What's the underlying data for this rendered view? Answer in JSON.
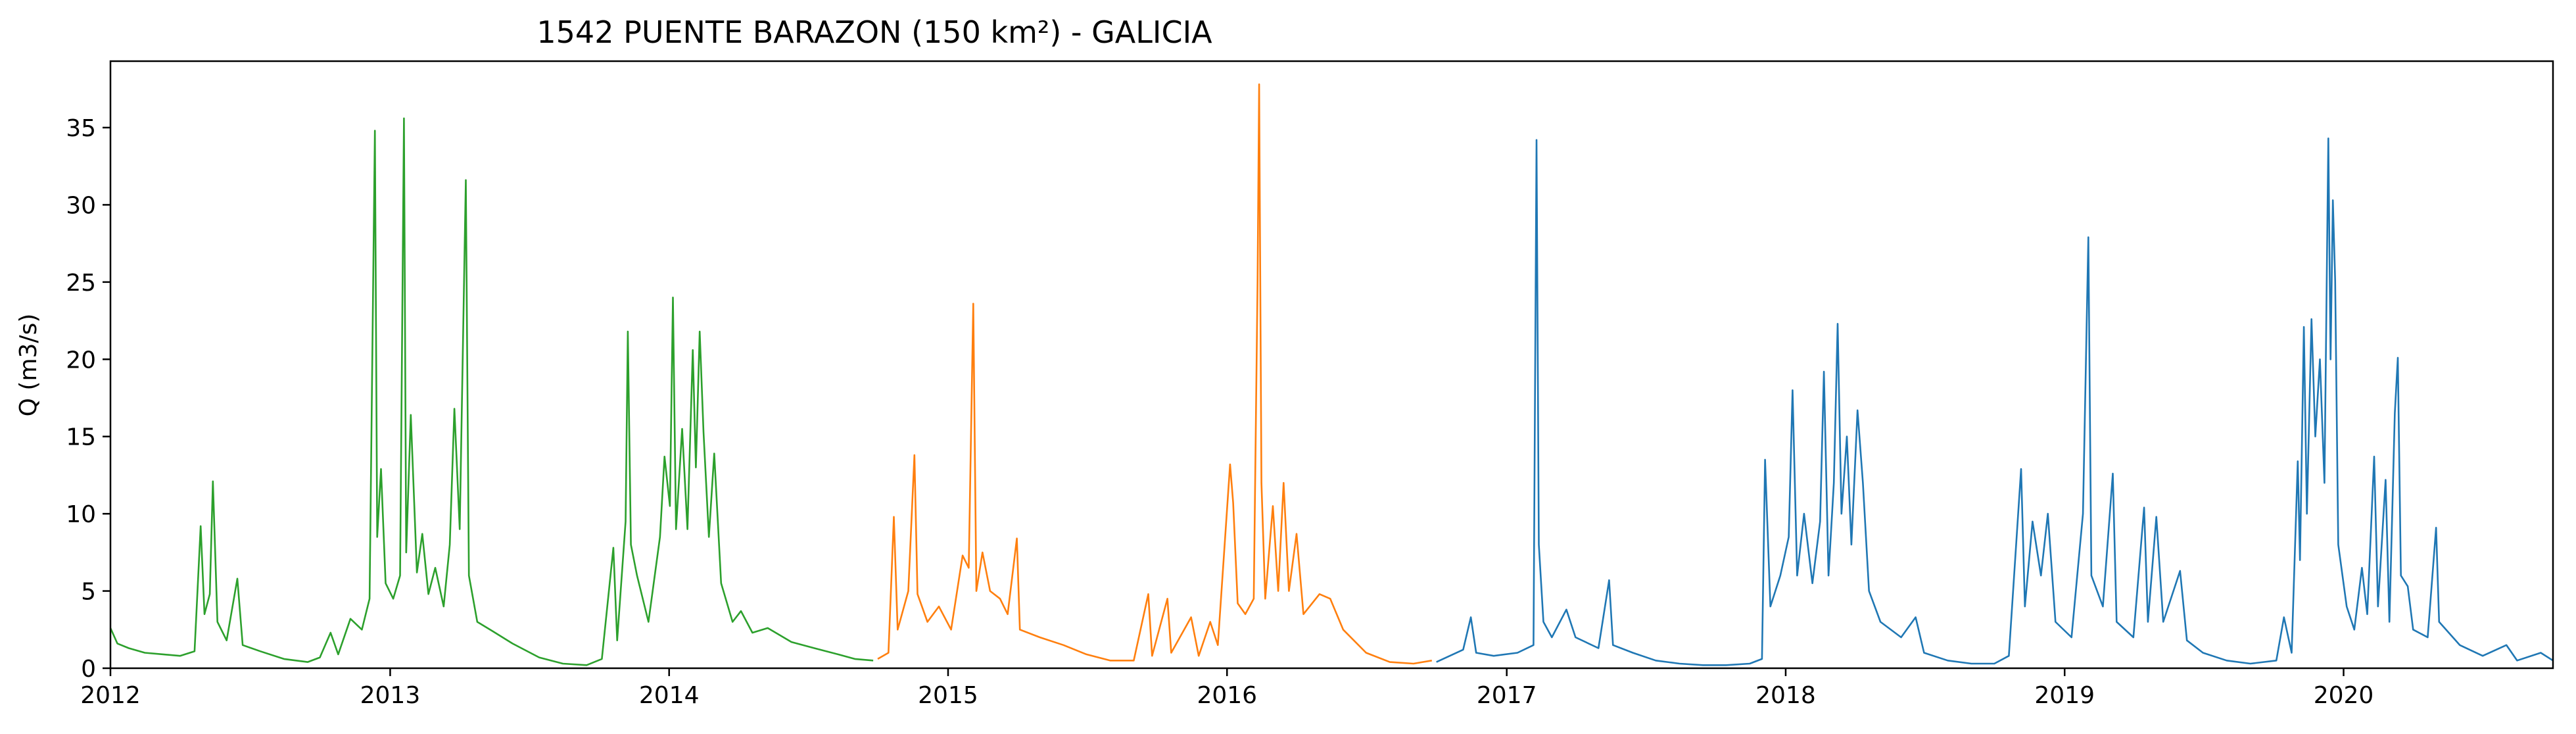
{
  "chart_data": {
    "type": "line",
    "title": "1542 PUENTE BARAZON (150 km²) - GALICIA",
    "xlabel": "",
    "ylabel": "Q (m3/s)",
    "xlim": [
      "2012-01-01",
      "2020-10-01"
    ],
    "ylim": [
      0,
      39.3
    ],
    "grid": false,
    "x_ticks": [
      "2012",
      "2013",
      "2014",
      "2015",
      "2016",
      "2017",
      "2018",
      "2019",
      "2020"
    ],
    "y_ticks": [
      0,
      5,
      10,
      15,
      20,
      25,
      30,
      35
    ],
    "series": [
      {
        "color": "#2ca02c",
        "points": [
          [
            "2012-01-01",
            2.6
          ],
          [
            "2012-01-10",
            1.6
          ],
          [
            "2012-01-25",
            1.3
          ],
          [
            "2012-02-15",
            1.0
          ],
          [
            "2012-03-10",
            0.9
          ],
          [
            "2012-04-01",
            0.8
          ],
          [
            "2012-04-20",
            1.1
          ],
          [
            "2012-04-28",
            9.2
          ],
          [
            "2012-05-03",
            3.5
          ],
          [
            "2012-05-10",
            4.8
          ],
          [
            "2012-05-14",
            12.1
          ],
          [
            "2012-05-20",
            3.0
          ],
          [
            "2012-06-01",
            1.8
          ],
          [
            "2012-06-15",
            5.8
          ],
          [
            "2012-06-22",
            1.5
          ],
          [
            "2012-07-15",
            1.1
          ],
          [
            "2012-08-15",
            0.6
          ],
          [
            "2012-09-15",
            0.4
          ],
          [
            "2012-10-01",
            0.7
          ],
          [
            "2012-10-15",
            2.3
          ],
          [
            "2012-10-25",
            0.9
          ],
          [
            "2012-11-10",
            3.2
          ],
          [
            "2012-11-25",
            2.5
          ],
          [
            "2012-12-05",
            4.5
          ],
          [
            "2012-12-12",
            34.8
          ],
          [
            "2012-12-15",
            8.5
          ],
          [
            "2012-12-20",
            12.9
          ],
          [
            "2012-12-26",
            5.5
          ],
          [
            "2013-01-05",
            4.5
          ],
          [
            "2013-01-14",
            6.0
          ],
          [
            "2013-01-19",
            35.6
          ],
          [
            "2013-01-22",
            7.5
          ],
          [
            "2013-01-28",
            16.4
          ],
          [
            "2013-02-05",
            6.2
          ],
          [
            "2013-02-12",
            8.7
          ],
          [
            "2013-02-20",
            4.8
          ],
          [
            "2013-03-01",
            6.5
          ],
          [
            "2013-03-12",
            4.0
          ],
          [
            "2013-03-20",
            8.0
          ],
          [
            "2013-03-26",
            16.8
          ],
          [
            "2013-04-02",
            9.0
          ],
          [
            "2013-04-10",
            31.6
          ],
          [
            "2013-04-14",
            6.0
          ],
          [
            "2013-04-25",
            3.0
          ],
          [
            "2013-05-15",
            2.4
          ],
          [
            "2013-06-10",
            1.6
          ],
          [
            "2013-07-15",
            0.7
          ],
          [
            "2013-08-15",
            0.3
          ],
          [
            "2013-09-15",
            0.2
          ],
          [
            "2013-10-05",
            0.6
          ],
          [
            "2013-10-20",
            7.8
          ],
          [
            "2013-10-25",
            1.8
          ],
          [
            "2013-11-05",
            9.5
          ],
          [
            "2013-11-08",
            21.8
          ],
          [
            "2013-11-12",
            8.0
          ],
          [
            "2013-11-20",
            6.0
          ],
          [
            "2013-12-05",
            3.0
          ],
          [
            "2013-12-20",
            8.5
          ],
          [
            "2013-12-26",
            13.7
          ],
          [
            "2014-01-02",
            10.5
          ],
          [
            "2014-01-06",
            24.0
          ],
          [
            "2014-01-10",
            9.0
          ],
          [
            "2014-01-18",
            15.5
          ],
          [
            "2014-01-25",
            9.0
          ],
          [
            "2014-02-01",
            20.6
          ],
          [
            "2014-02-05",
            13.0
          ],
          [
            "2014-02-10",
            21.8
          ],
          [
            "2014-02-15",
            15.3
          ],
          [
            "2014-02-22",
            8.5
          ],
          [
            "2014-03-01",
            13.9
          ],
          [
            "2014-03-10",
            5.5
          ],
          [
            "2014-03-25",
            3.0
          ],
          [
            "2014-04-05",
            3.7
          ],
          [
            "2014-04-20",
            2.3
          ],
          [
            "2014-05-10",
            2.6
          ],
          [
            "2014-06-10",
            1.7
          ],
          [
            "2014-07-10",
            1.3
          ],
          [
            "2014-08-10",
            0.9
          ],
          [
            "2014-09-01",
            0.6
          ],
          [
            "2014-09-25",
            0.5
          ]
        ]
      },
      {
        "color": "#ff7f0e",
        "points": [
          [
            "2014-10-01",
            0.6
          ],
          [
            "2014-10-15",
            1.0
          ],
          [
            "2014-10-22",
            9.8
          ],
          [
            "2014-10-27",
            2.5
          ],
          [
            "2014-11-10",
            5.0
          ],
          [
            "2014-11-18",
            13.8
          ],
          [
            "2014-11-22",
            4.8
          ],
          [
            "2014-12-05",
            3.0
          ],
          [
            "2014-12-20",
            4.0
          ],
          [
            "2015-01-05",
            2.5
          ],
          [
            "2015-01-20",
            7.3
          ],
          [
            "2015-01-28",
            6.5
          ],
          [
            "2015-02-03",
            23.6
          ],
          [
            "2015-02-07",
            5.0
          ],
          [
            "2015-02-15",
            7.5
          ],
          [
            "2015-02-25",
            5.0
          ],
          [
            "2015-03-10",
            4.5
          ],
          [
            "2015-03-20",
            3.5
          ],
          [
            "2015-04-01",
            8.4
          ],
          [
            "2015-04-05",
            2.5
          ],
          [
            "2015-05-01",
            2.0
          ],
          [
            "2015-06-01",
            1.5
          ],
          [
            "2015-07-01",
            0.9
          ],
          [
            "2015-08-01",
            0.5
          ],
          [
            "2015-09-01",
            0.5
          ],
          [
            "2015-09-20",
            4.8
          ],
          [
            "2015-09-25",
            0.8
          ],
          [
            "2015-10-15",
            4.5
          ],
          [
            "2015-10-20",
            1.0
          ],
          [
            "2015-11-15",
            3.3
          ],
          [
            "2015-11-25",
            0.8
          ],
          [
            "2015-12-10",
            3.0
          ],
          [
            "2015-12-20",
            1.5
          ],
          [
            "2016-01-05",
            13.2
          ],
          [
            "2016-01-09",
            10.7
          ],
          [
            "2016-01-15",
            4.2
          ],
          [
            "2016-01-25",
            3.5
          ],
          [
            "2016-02-05",
            4.5
          ],
          [
            "2016-02-10",
            25.0
          ],
          [
            "2016-02-12",
            37.8
          ],
          [
            "2016-02-15",
            12.0
          ],
          [
            "2016-02-20",
            4.5
          ],
          [
            "2016-03-01",
            10.5
          ],
          [
            "2016-03-08",
            5.0
          ],
          [
            "2016-03-15",
            12.0
          ],
          [
            "2016-03-22",
            5.0
          ],
          [
            "2016-04-01",
            8.7
          ],
          [
            "2016-04-10",
            3.5
          ],
          [
            "2016-05-01",
            4.8
          ],
          [
            "2016-05-15",
            4.5
          ],
          [
            "2016-06-01",
            2.5
          ],
          [
            "2016-07-01",
            1.0
          ],
          [
            "2016-08-01",
            0.4
          ],
          [
            "2016-09-01",
            0.3
          ],
          [
            "2016-09-25",
            0.5
          ]
        ]
      },
      {
        "color": "#1f77b4",
        "points": [
          [
            "2016-10-01",
            0.4
          ],
          [
            "2016-11-05",
            1.2
          ],
          [
            "2016-11-15",
            3.3
          ],
          [
            "2016-11-22",
            1.0
          ],
          [
            "2016-12-15",
            0.8
          ],
          [
            "2017-01-15",
            1.0
          ],
          [
            "2017-02-05",
            1.5
          ],
          [
            "2017-02-09",
            34.2
          ],
          [
            "2017-02-12",
            8.0
          ],
          [
            "2017-02-18",
            3.0
          ],
          [
            "2017-03-01",
            2.0
          ],
          [
            "2017-03-20",
            3.8
          ],
          [
            "2017-04-01",
            2.0
          ],
          [
            "2017-05-01",
            1.3
          ],
          [
            "2017-05-15",
            5.7
          ],
          [
            "2017-05-20",
            1.5
          ],
          [
            "2017-06-15",
            1.0
          ],
          [
            "2017-07-15",
            0.5
          ],
          [
            "2017-08-15",
            0.3
          ],
          [
            "2017-09-15",
            0.2
          ],
          [
            "2017-10-15",
            0.2
          ],
          [
            "2017-11-15",
            0.3
          ],
          [
            "2017-12-01",
            0.6
          ],
          [
            "2017-12-05",
            13.5
          ],
          [
            "2017-12-12",
            4.0
          ],
          [
            "2017-12-25",
            6.0
          ],
          [
            "2018-01-05",
            8.5
          ],
          [
            "2018-01-10",
            18.0
          ],
          [
            "2018-01-16",
            6.0
          ],
          [
            "2018-01-25",
            10.0
          ],
          [
            "2018-02-05",
            5.5
          ],
          [
            "2018-02-15",
            9.5
          ],
          [
            "2018-02-20",
            19.2
          ],
          [
            "2018-02-26",
            6.0
          ],
          [
            "2018-03-05",
            12.0
          ],
          [
            "2018-03-10",
            22.3
          ],
          [
            "2018-03-15",
            10.0
          ],
          [
            "2018-03-22",
            15.0
          ],
          [
            "2018-03-28",
            8.0
          ],
          [
            "2018-04-05",
            16.7
          ],
          [
            "2018-04-12",
            12.0
          ],
          [
            "2018-04-20",
            5.0
          ],
          [
            "2018-05-05",
            3.0
          ],
          [
            "2018-06-01",
            2.0
          ],
          [
            "2018-06-20",
            3.3
          ],
          [
            "2018-07-01",
            1.0
          ],
          [
            "2018-08-01",
            0.5
          ],
          [
            "2018-09-01",
            0.3
          ],
          [
            "2018-10-01",
            0.3
          ],
          [
            "2018-10-20",
            0.8
          ],
          [
            "2018-11-05",
            12.9
          ],
          [
            "2018-11-10",
            4.0
          ],
          [
            "2018-11-20",
            9.5
          ],
          [
            "2018-12-01",
            6.0
          ],
          [
            "2018-12-10",
            10.0
          ],
          [
            "2018-12-20",
            3.0
          ],
          [
            "2019-01-10",
            2.0
          ],
          [
            "2019-01-25",
            10.0
          ],
          [
            "2019-02-01",
            27.9
          ],
          [
            "2019-02-05",
            6.0
          ],
          [
            "2019-02-20",
            4.0
          ],
          [
            "2019-03-05",
            12.6
          ],
          [
            "2019-03-10",
            3.0
          ],
          [
            "2019-04-01",
            2.0
          ],
          [
            "2019-04-15",
            10.4
          ],
          [
            "2019-04-20",
            3.0
          ],
          [
            "2019-05-01",
            9.8
          ],
          [
            "2019-05-10",
            3.0
          ],
          [
            "2019-06-01",
            6.3
          ],
          [
            "2019-06-10",
            1.8
          ],
          [
            "2019-07-01",
            1.0
          ],
          [
            "2019-08-01",
            0.5
          ],
          [
            "2019-09-01",
            0.3
          ],
          [
            "2019-10-05",
            0.5
          ],
          [
            "2019-10-15",
            3.3
          ],
          [
            "2019-10-25",
            1.0
          ],
          [
            "2019-11-02",
            13.4
          ],
          [
            "2019-11-05",
            7.0
          ],
          [
            "2019-11-10",
            22.1
          ],
          [
            "2019-11-14",
            10.0
          ],
          [
            "2019-11-20",
            22.6
          ],
          [
            "2019-11-25",
            15.0
          ],
          [
            "2019-12-01",
            20.0
          ],
          [
            "2019-12-07",
            12.0
          ],
          [
            "2019-12-12",
            34.3
          ],
          [
            "2019-12-15",
            20.0
          ],
          [
            "2019-12-18",
            30.3
          ],
          [
            "2019-12-21",
            25.1
          ],
          [
            "2019-12-25",
            8.0
          ],
          [
            "2020-01-05",
            4.0
          ],
          [
            "2020-01-15",
            2.5
          ],
          [
            "2020-01-25",
            6.5
          ],
          [
            "2020-02-01",
            3.5
          ],
          [
            "2020-02-10",
            13.7
          ],
          [
            "2020-02-15",
            4.0
          ],
          [
            "2020-02-25",
            12.2
          ],
          [
            "2020-03-01",
            3.0
          ],
          [
            "2020-03-08",
            16.5
          ],
          [
            "2020-03-12",
            20.1
          ],
          [
            "2020-03-16",
            6.0
          ],
          [
            "2020-03-25",
            5.3
          ],
          [
            "2020-04-01",
            2.5
          ],
          [
            "2020-04-20",
            2.0
          ],
          [
            "2020-05-01",
            9.1
          ],
          [
            "2020-05-05",
            3.0
          ],
          [
            "2020-06-01",
            1.5
          ],
          [
            "2020-07-01",
            0.8
          ],
          [
            "2020-08-01",
            1.5
          ],
          [
            "2020-08-15",
            0.5
          ],
          [
            "2020-09-15",
            1.0
          ],
          [
            "2020-10-01",
            0.5
          ]
        ]
      }
    ]
  }
}
